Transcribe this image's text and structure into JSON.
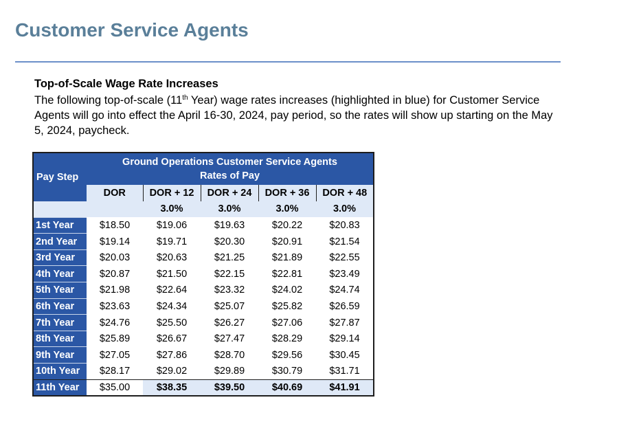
{
  "title": "Customer Service Agents",
  "section": {
    "heading": "Top-of-Scale Wage Rate Increases",
    "intro_before_sup": "The following top-of-scale (11",
    "intro_sup": "th",
    "intro_after_sup": " Year) wage rates increases (highlighted in blue) for Customer Service Agents will go into effect the April 16-30, 2024, pay period, so the rates will show up starting on the May 5, 2024, paycheck."
  },
  "table": {
    "pay_step_header": "Pay Step",
    "group_header_line1": "Ground Operations Customer Service Agents",
    "group_header_line2": "Rates of Pay",
    "columns": [
      "DOR",
      "DOR + 12",
      "DOR + 24",
      "DOR + 36",
      "DOR + 48"
    ],
    "percents": [
      "",
      "3.0%",
      "3.0%",
      "3.0%",
      "3.0%"
    ],
    "rows": [
      {
        "step": "1st Year",
        "values": [
          "$18.50",
          "$19.06",
          "$19.63",
          "$20.22",
          "$20.83"
        ]
      },
      {
        "step": "2nd Year",
        "values": [
          "$19.14",
          "$19.71",
          "$20.30",
          "$20.91",
          "$21.54"
        ]
      },
      {
        "step": "3rd Year",
        "values": [
          "$20.03",
          "$20.63",
          "$21.25",
          "$21.89",
          "$22.55"
        ]
      },
      {
        "step": "4th Year",
        "values": [
          "$20.87",
          "$21.50",
          "$22.15",
          "$22.81",
          "$23.49"
        ]
      },
      {
        "step": "5th Year",
        "values": [
          "$21.98",
          "$22.64",
          "$23.32",
          "$24.02",
          "$24.74"
        ]
      },
      {
        "step": "6th Year",
        "values": [
          "$23.63",
          "$24.34",
          "$25.07",
          "$25.82",
          "$26.59"
        ]
      },
      {
        "step": "7th Year",
        "values": [
          "$24.76",
          "$25.50",
          "$26.27",
          "$27.06",
          "$27.87"
        ]
      },
      {
        "step": "8th Year",
        "values": [
          "$25.89",
          "$26.67",
          "$27.47",
          "$28.29",
          "$29.14"
        ]
      },
      {
        "step": "9th Year",
        "values": [
          "$27.05",
          "$27.86",
          "$28.70",
          "$29.56",
          "$30.45"
        ]
      },
      {
        "step": "10th Year",
        "values": [
          "$28.17",
          "$29.02",
          "$29.89",
          "$30.79",
          "$31.71"
        ]
      }
    ],
    "final_row": {
      "step": "11th Year",
      "values": [
        "$35.00",
        "$38.35",
        "$39.50",
        "$40.69",
        "$41.91"
      ]
    }
  },
  "colors": {
    "title": "#5a7f99",
    "rule": "#6b8fc9",
    "header_blue": "#2b57a5",
    "highlight": "#dfe9f7"
  }
}
